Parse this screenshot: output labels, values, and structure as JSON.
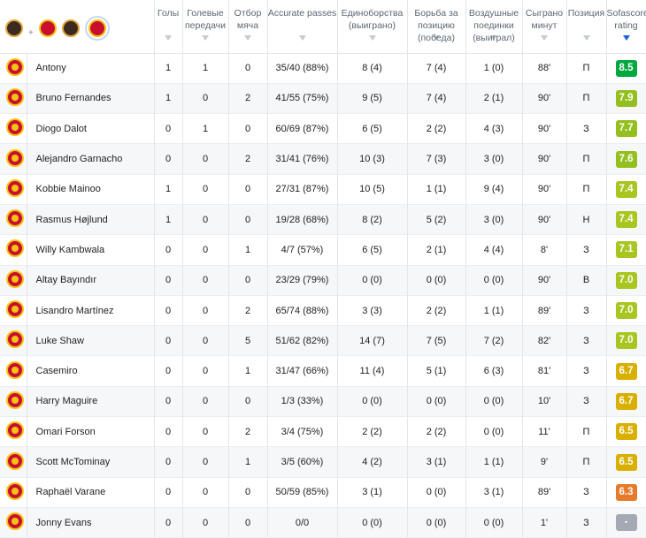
{
  "columns": {
    "goals": "Голы",
    "assists": "Голевые передачи",
    "ball_recovery": "Отбор мяча",
    "accurate_passes": "Accurate passes",
    "duels": "Единоборства (выиграно)",
    "ground_duels": "Борьба за позицию (победа)",
    "aerial_duels": "Воздушные поединки (выиграл)",
    "minutes": "Сыграно минут",
    "position": "Позиция",
    "rating": "Sofascore rating"
  },
  "header_filter": {
    "plus": "+"
  },
  "colors": {
    "green_dark": "#00a83f",
    "green": "#93c01f",
    "lime": "#a8c520",
    "yellow": "#d9af00",
    "orange": "#e8792b",
    "gray": "#a4a9b3",
    "accent": "#1a66d2"
  },
  "players": [
    {
      "name": "Antony",
      "goals": "1",
      "assists": "1",
      "tackles": "0",
      "passes": "35/40 (88%)",
      "duels": "8 (4)",
      "ground": "7 (4)",
      "aerial": "1 (0)",
      "minutes": "88'",
      "pos": "П",
      "rating": "8.5",
      "rcolor": "#00a83f"
    },
    {
      "name": "Bruno Fernandes",
      "goals": "1",
      "assists": "0",
      "tackles": "2",
      "passes": "41/55 (75%)",
      "duels": "9 (5)",
      "ground": "7 (4)",
      "aerial": "2 (1)",
      "minutes": "90'",
      "pos": "П",
      "rating": "7.9",
      "rcolor": "#93c01f"
    },
    {
      "name": "Diogo Dalot",
      "goals": "0",
      "assists": "1",
      "tackles": "0",
      "passes": "60/69 (87%)",
      "duels": "6 (5)",
      "ground": "2 (2)",
      "aerial": "4 (3)",
      "minutes": "90'",
      "pos": "З",
      "rating": "7.7",
      "rcolor": "#93c01f"
    },
    {
      "name": "Alejandro Garnacho",
      "goals": "0",
      "assists": "0",
      "tackles": "2",
      "passes": "31/41 (76%)",
      "duels": "10 (3)",
      "ground": "7 (3)",
      "aerial": "3 (0)",
      "minutes": "90'",
      "pos": "П",
      "rating": "7.6",
      "rcolor": "#93c01f"
    },
    {
      "name": "Kobbie Mainoo",
      "goals": "1",
      "assists": "0",
      "tackles": "0",
      "passes": "27/31 (87%)",
      "duels": "10 (5)",
      "ground": "1 (1)",
      "aerial": "9 (4)",
      "minutes": "90'",
      "pos": "П",
      "rating": "7.4",
      "rcolor": "#a8c520"
    },
    {
      "name": "Rasmus Højlund",
      "goals": "1",
      "assists": "0",
      "tackles": "0",
      "passes": "19/28 (68%)",
      "duels": "8 (2)",
      "ground": "5 (2)",
      "aerial": "3 (0)",
      "minutes": "90'",
      "pos": "Н",
      "rating": "7.4",
      "rcolor": "#a8c520"
    },
    {
      "name": "Willy Kambwala",
      "goals": "0",
      "assists": "0",
      "tackles": "1",
      "passes": "4/7 (57%)",
      "duels": "6 (5)",
      "ground": "2 (1)",
      "aerial": "4 (4)",
      "minutes": "8'",
      "pos": "З",
      "rating": "7.1",
      "rcolor": "#a8c520"
    },
    {
      "name": "Altay Bayındır",
      "goals": "0",
      "assists": "0",
      "tackles": "0",
      "passes": "23/29 (79%)",
      "duels": "0 (0)",
      "ground": "0 (0)",
      "aerial": "0 (0)",
      "minutes": "90'",
      "pos": "В",
      "rating": "7.0",
      "rcolor": "#a8c520"
    },
    {
      "name": "Lisandro Martínez",
      "goals": "0",
      "assists": "0",
      "tackles": "2",
      "passes": "65/74 (88%)",
      "duels": "3 (3)",
      "ground": "2 (2)",
      "aerial": "1 (1)",
      "minutes": "89'",
      "pos": "З",
      "rating": "7.0",
      "rcolor": "#a8c520"
    },
    {
      "name": "Luke Shaw",
      "goals": "0",
      "assists": "0",
      "tackles": "5",
      "passes": "51/62 (82%)",
      "duels": "14 (7)",
      "ground": "7 (5)",
      "aerial": "7 (2)",
      "minutes": "82'",
      "pos": "З",
      "rating": "7.0",
      "rcolor": "#a8c520"
    },
    {
      "name": "Casemiro",
      "goals": "0",
      "assists": "0",
      "tackles": "1",
      "passes": "31/47 (66%)",
      "duels": "11 (4)",
      "ground": "5 (1)",
      "aerial": "6 (3)",
      "minutes": "81'",
      "pos": "З",
      "rating": "6.7",
      "rcolor": "#d9af00"
    },
    {
      "name": "Harry Maguire",
      "goals": "0",
      "assists": "0",
      "tackles": "0",
      "passes": "1/3 (33%)",
      "duels": "0 (0)",
      "ground": "0 (0)",
      "aerial": "0 (0)",
      "minutes": "10'",
      "pos": "З",
      "rating": "6.7",
      "rcolor": "#d9af00"
    },
    {
      "name": "Omari Forson",
      "goals": "0",
      "assists": "0",
      "tackles": "2",
      "passes": "3/4 (75%)",
      "duels": "2 (2)",
      "ground": "2 (2)",
      "aerial": "0 (0)",
      "minutes": "11'",
      "pos": "П",
      "rating": "6.5",
      "rcolor": "#d9af00"
    },
    {
      "name": "Scott McTominay",
      "goals": "0",
      "assists": "0",
      "tackles": "1",
      "passes": "3/5 (60%)",
      "duels": "4 (2)",
      "ground": "3 (1)",
      "aerial": "1 (1)",
      "minutes": "9'",
      "pos": "П",
      "rating": "6.5",
      "rcolor": "#d9af00"
    },
    {
      "name": "Raphaël Varane",
      "goals": "0",
      "assists": "0",
      "tackles": "0",
      "passes": "50/59 (85%)",
      "duels": "3 (1)",
      "ground": "0 (0)",
      "aerial": "3 (1)",
      "minutes": "89'",
      "pos": "З",
      "rating": "6.3",
      "rcolor": "#e8792b"
    },
    {
      "name": "Jonny Evans",
      "goals": "0",
      "assists": "0",
      "tackles": "0",
      "passes": "0/0",
      "duels": "0 (0)",
      "ground": "0 (0)",
      "aerial": "0 (0)",
      "minutes": "1'",
      "pos": "З",
      "rating": "-",
      "rcolor": "#a4a9b3"
    }
  ]
}
